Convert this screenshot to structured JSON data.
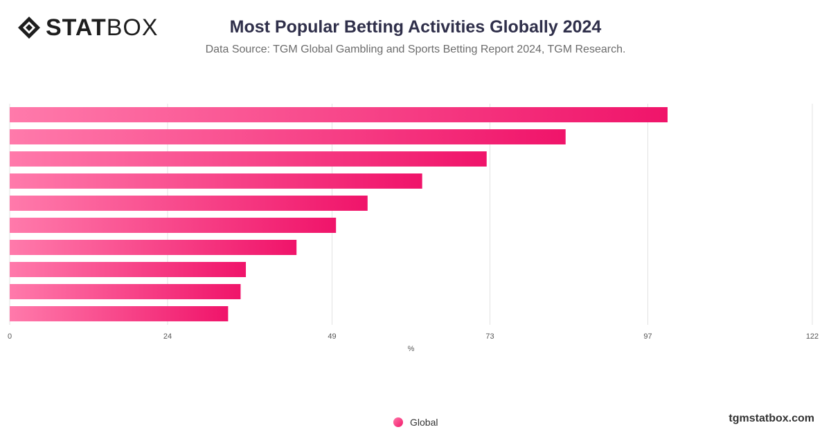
{
  "header": {
    "logo_bold": "STAT",
    "logo_light": "BOX",
    "title": "Most Popular Betting Activities Globally 2024",
    "subtitle": "Data Source: TGM Global Gambling and Sports Betting Report 2024, TGM Research."
  },
  "footer": {
    "brand": "tgmstatbox.com"
  },
  "colors": {
    "bar_start": "#ff7aab",
    "bar_end": "#f0146a",
    "grid": "#e2e2e2",
    "axis": "#555555",
    "title": "#2f2f4a"
  },
  "chart_data": {
    "type": "bar",
    "orientation": "horizontal",
    "title": "Most Popular Betting Activities Globally 2024",
    "subtitle": "Data Source: TGM Global Gambling and Sports Betting Report 2024, TGM Research.",
    "xlabel": "%",
    "ylabel": "",
    "xlim": [
      0,
      122
    ],
    "xticks": [
      0,
      24,
      49,
      73,
      97,
      122
    ],
    "grid": true,
    "legend": "bottom-center",
    "series": [
      {
        "name": "Global",
        "values": [
          100,
          84.5,
          72.5,
          62.7,
          54.4,
          49.6,
          43.6,
          35.9,
          35.1,
          33.2
        ]
      }
    ]
  }
}
